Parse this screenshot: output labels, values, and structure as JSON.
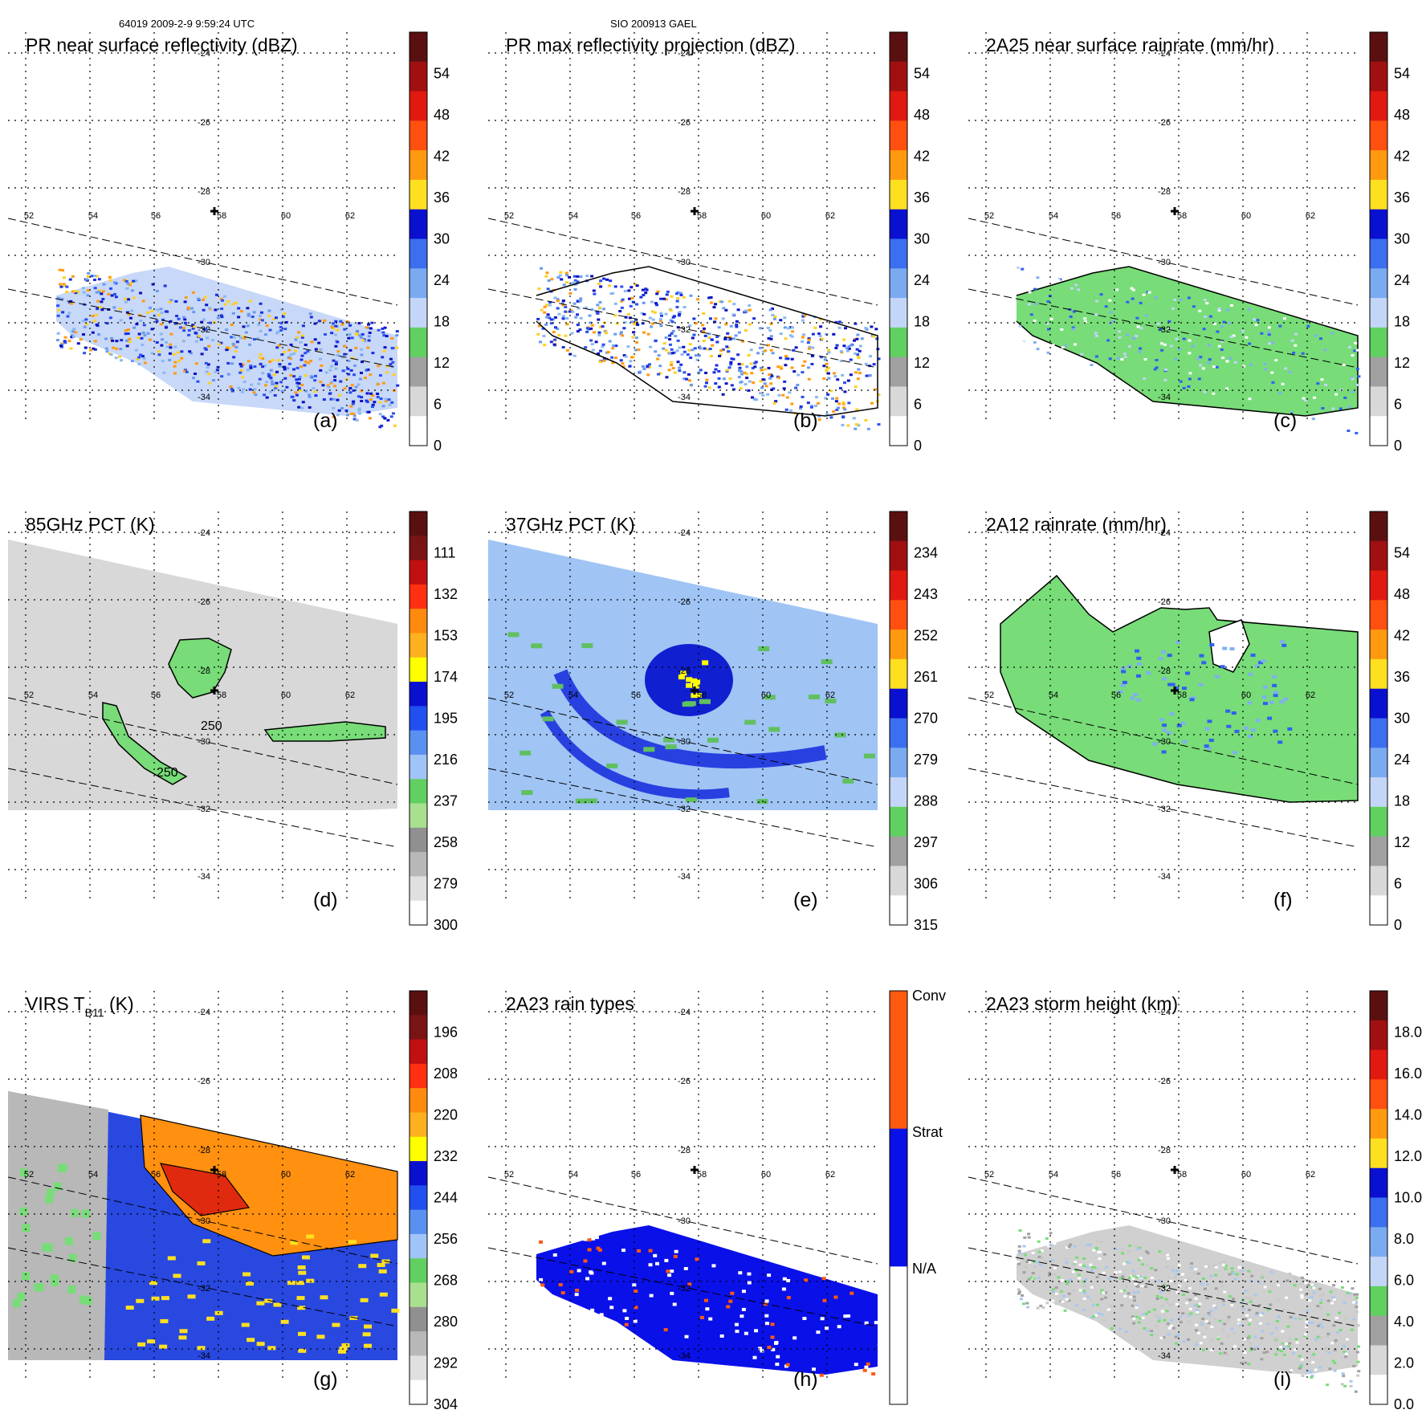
{
  "header": {
    "left": "64019 2009-2-9 9:59:24 UTC",
    "center": "SIO 200913 GAEL"
  },
  "map": {
    "lat_labels": [
      "-24",
      "-26",
      "-28",
      "-30",
      "-32",
      "-34"
    ],
    "lon_labels": [
      "52",
      "54",
      "56",
      "58",
      "60",
      "62"
    ],
    "contour_label": "250"
  },
  "panels": [
    {
      "id": "a",
      "title": "PR near surface reflectivity (dBZ)",
      "label": "(a)",
      "colorbar": [
        "54",
        "48",
        "42",
        "36",
        "30",
        "24",
        "18",
        "12",
        "6",
        "0"
      ]
    },
    {
      "id": "b",
      "title": "PR max reflectivity projection (dBZ)",
      "label": "(b)",
      "colorbar": [
        "54",
        "48",
        "42",
        "36",
        "30",
        "24",
        "18",
        "12",
        "6",
        "0"
      ]
    },
    {
      "id": "c",
      "title": "2A25 near surface rainrate (mm/hr)",
      "label": "(c)",
      "colorbar": [
        "54",
        "48",
        "42",
        "36",
        "30",
        "24",
        "18",
        "12",
        "6",
        "0"
      ]
    },
    {
      "id": "d",
      "title": "85GHz PCT (K)",
      "label": "(d)",
      "colorbar": [
        "111",
        "132",
        "153",
        "174",
        "195",
        "216",
        "237",
        "258",
        "279",
        "300"
      ]
    },
    {
      "id": "e",
      "title": "37GHz PCT (K)",
      "label": "(e)",
      "colorbar": [
        "234",
        "243",
        "252",
        "261",
        "270",
        "279",
        "288",
        "297",
        "306",
        "315"
      ]
    },
    {
      "id": "f",
      "title": "2A12 rainrate (mm/hr)",
      "label": "(f)",
      "colorbar": [
        "54",
        "48",
        "42",
        "36",
        "30",
        "24",
        "18",
        "12",
        "6",
        "0"
      ]
    },
    {
      "id": "g",
      "title": "VIRS T",
      "title_sub": "B11",
      "title_tail": " (K)",
      "label": "(g)",
      "colorbar": [
        "196",
        "208",
        "220",
        "232",
        "244",
        "256",
        "268",
        "280",
        "292",
        "304"
      ]
    },
    {
      "id": "h",
      "title": "2A23 rain types",
      "label": "(h)",
      "colorbar": [
        "Conv",
        "Strat",
        "N/A"
      ]
    },
    {
      "id": "i",
      "title": "2A23 storm height (km)",
      "label": "(i)",
      "colorbar": [
        "18.0",
        "16.0",
        "14.0",
        "12.0",
        "10.0",
        "8.0",
        "6.0",
        "4.0",
        "2.0",
        "0.0"
      ]
    }
  ],
  "colors": {
    "ramp_standard": [
      "#5a1010",
      "#7c1414",
      "#b01010",
      "#e02010",
      "#ff4a10",
      "#ff9a10",
      "#ffd020",
      "#ffff00",
      "#0a10d0",
      "#1a3cf0",
      "#3c78f0",
      "#80b0f0",
      "#c8d8f8",
      "#60d060",
      "#a8e090",
      "#a0a0a0",
      "#c8c8c8",
      "#e8e8e8",
      "#ffffff"
    ],
    "green_rain": "#78dc78",
    "conv": "#ff5a10",
    "strat": "#0a10e8"
  }
}
